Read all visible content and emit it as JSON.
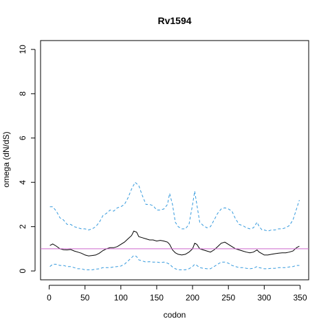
{
  "chart_data": {
    "type": "line",
    "title": "Rv1594",
    "xlabel": "codon",
    "ylabel": "omega (dN/dS)",
    "xlim": [
      -12,
      362
    ],
    "ylim": [
      -0.4,
      10.4
    ],
    "xticks": [
      0,
      50,
      100,
      150,
      200,
      250,
      300,
      350
    ],
    "yticks": [
      0,
      2,
      4,
      6,
      8,
      10
    ],
    "grid": false,
    "legend": "none",
    "reference_line": {
      "y": 1,
      "color": "#cc66cc"
    },
    "series": [
      {
        "role": "estimate",
        "color": "#000000",
        "dash": "solid",
        "points": [
          [
            1,
            1.15
          ],
          [
            5,
            1.22
          ],
          [
            10,
            1.12
          ],
          [
            15,
            1.0
          ],
          [
            20,
            0.96
          ],
          [
            25,
            0.95
          ],
          [
            30,
            0.97
          ],
          [
            35,
            0.9
          ],
          [
            40,
            0.85
          ],
          [
            45,
            0.8
          ],
          [
            50,
            0.72
          ],
          [
            55,
            0.68
          ],
          [
            60,
            0.7
          ],
          [
            65,
            0.72
          ],
          [
            70,
            0.8
          ],
          [
            75,
            0.92
          ],
          [
            80,
            1.0
          ],
          [
            85,
            1.05
          ],
          [
            90,
            1.05
          ],
          [
            95,
            1.1
          ],
          [
            100,
            1.2
          ],
          [
            105,
            1.3
          ],
          [
            110,
            1.45
          ],
          [
            115,
            1.6
          ],
          [
            118,
            1.8
          ],
          [
            122,
            1.75
          ],
          [
            125,
            1.55
          ],
          [
            130,
            1.5
          ],
          [
            135,
            1.45
          ],
          [
            140,
            1.4
          ],
          [
            145,
            1.4
          ],
          [
            150,
            1.35
          ],
          [
            155,
            1.38
          ],
          [
            160,
            1.35
          ],
          [
            165,
            1.3
          ],
          [
            168,
            1.2
          ],
          [
            172,
            0.95
          ],
          [
            176,
            0.82
          ],
          [
            180,
            0.75
          ],
          [
            185,
            0.72
          ],
          [
            190,
            0.75
          ],
          [
            195,
            0.85
          ],
          [
            200,
            1.0
          ],
          [
            203,
            1.25
          ],
          [
            206,
            1.2
          ],
          [
            210,
            1.0
          ],
          [
            215,
            0.95
          ],
          [
            220,
            0.9
          ],
          [
            225,
            0.85
          ],
          [
            230,
            0.95
          ],
          [
            235,
            1.1
          ],
          [
            240,
            1.25
          ],
          [
            245,
            1.3
          ],
          [
            250,
            1.2
          ],
          [
            255,
            1.1
          ],
          [
            260,
            1.0
          ],
          [
            265,
            0.95
          ],
          [
            270,
            0.9
          ],
          [
            275,
            0.85
          ],
          [
            280,
            0.82
          ],
          [
            285,
            0.85
          ],
          [
            290,
            0.95
          ],
          [
            293,
            0.85
          ],
          [
            297,
            0.78
          ],
          [
            300,
            0.72
          ],
          [
            305,
            0.72
          ],
          [
            310,
            0.75
          ],
          [
            315,
            0.78
          ],
          [
            320,
            0.8
          ],
          [
            325,
            0.82
          ],
          [
            330,
            0.82
          ],
          [
            335,
            0.85
          ],
          [
            340,
            0.9
          ],
          [
            345,
            1.05
          ],
          [
            349,
            1.12
          ]
        ]
      },
      {
        "role": "upper-bound",
        "color": "#3399dd",
        "dash": "dashed",
        "points": [
          [
            1,
            2.9
          ],
          [
            5,
            2.9
          ],
          [
            10,
            2.7
          ],
          [
            15,
            2.4
          ],
          [
            20,
            2.3
          ],
          [
            25,
            2.1
          ],
          [
            30,
            2.1
          ],
          [
            35,
            2.0
          ],
          [
            40,
            1.95
          ],
          [
            45,
            1.9
          ],
          [
            50,
            1.9
          ],
          [
            55,
            1.85
          ],
          [
            60,
            1.9
          ],
          [
            65,
            2.0
          ],
          [
            70,
            2.2
          ],
          [
            75,
            2.5
          ],
          [
            80,
            2.6
          ],
          [
            85,
            2.75
          ],
          [
            90,
            2.7
          ],
          [
            95,
            2.85
          ],
          [
            100,
            2.9
          ],
          [
            105,
            3.0
          ],
          [
            110,
            3.3
          ],
          [
            115,
            3.7
          ],
          [
            120,
            4.0
          ],
          [
            125,
            3.85
          ],
          [
            130,
            3.4
          ],
          [
            135,
            3.0
          ],
          [
            140,
            3.0
          ],
          [
            145,
            2.95
          ],
          [
            150,
            2.75
          ],
          [
            155,
            2.75
          ],
          [
            160,
            2.8
          ],
          [
            165,
            3.0
          ],
          [
            168,
            3.5
          ],
          [
            172,
            3.0
          ],
          [
            176,
            2.2
          ],
          [
            180,
            2.0
          ],
          [
            185,
            1.9
          ],
          [
            190,
            1.9
          ],
          [
            195,
            2.1
          ],
          [
            200,
            3.0
          ],
          [
            203,
            3.6
          ],
          [
            206,
            3.0
          ],
          [
            210,
            2.2
          ],
          [
            215,
            2.05
          ],
          [
            220,
            1.95
          ],
          [
            225,
            2.0
          ],
          [
            230,
            2.3
          ],
          [
            235,
            2.6
          ],
          [
            240,
            2.8
          ],
          [
            245,
            2.85
          ],
          [
            250,
            2.8
          ],
          [
            255,
            2.7
          ],
          [
            260,
            2.35
          ],
          [
            265,
            2.1
          ],
          [
            270,
            2.05
          ],
          [
            275,
            1.95
          ],
          [
            280,
            1.9
          ],
          [
            285,
            1.95
          ],
          [
            290,
            2.2
          ],
          [
            293,
            2.0
          ],
          [
            297,
            1.85
          ],
          [
            300,
            1.85
          ],
          [
            305,
            1.8
          ],
          [
            310,
            1.85
          ],
          [
            315,
            1.85
          ],
          [
            320,
            1.9
          ],
          [
            325,
            1.9
          ],
          [
            330,
            1.95
          ],
          [
            335,
            2.05
          ],
          [
            340,
            2.3
          ],
          [
            345,
            2.8
          ],
          [
            349,
            3.2
          ]
        ]
      },
      {
        "role": "lower-bound",
        "color": "#3399dd",
        "dash": "dashed",
        "points": [
          [
            1,
            0.2
          ],
          [
            5,
            0.3
          ],
          [
            10,
            0.3
          ],
          [
            15,
            0.25
          ],
          [
            20,
            0.25
          ],
          [
            25,
            0.2
          ],
          [
            30,
            0.2
          ],
          [
            35,
            0.15
          ],
          [
            40,
            0.1
          ],
          [
            45,
            0.1
          ],
          [
            50,
            0.05
          ],
          [
            55,
            0.05
          ],
          [
            60,
            0.05
          ],
          [
            65,
            0.08
          ],
          [
            70,
            0.1
          ],
          [
            75,
            0.15
          ],
          [
            80,
            0.15
          ],
          [
            85,
            0.15
          ],
          [
            90,
            0.18
          ],
          [
            95,
            0.2
          ],
          [
            100,
            0.22
          ],
          [
            105,
            0.3
          ],
          [
            110,
            0.45
          ],
          [
            115,
            0.6
          ],
          [
            118,
            0.7
          ],
          [
            122,
            0.65
          ],
          [
            125,
            0.5
          ],
          [
            130,
            0.45
          ],
          [
            135,
            0.4
          ],
          [
            140,
            0.42
          ],
          [
            145,
            0.4
          ],
          [
            150,
            0.4
          ],
          [
            155,
            0.38
          ],
          [
            160,
            0.4
          ],
          [
            165,
            0.35
          ],
          [
            168,
            0.3
          ],
          [
            172,
            0.18
          ],
          [
            176,
            0.1
          ],
          [
            180,
            0.05
          ],
          [
            185,
            0.05
          ],
          [
            190,
            0.05
          ],
          [
            195,
            0.1
          ],
          [
            200,
            0.2
          ],
          [
            203,
            0.3
          ],
          [
            206,
            0.25
          ],
          [
            210,
            0.15
          ],
          [
            215,
            0.12
          ],
          [
            220,
            0.1
          ],
          [
            225,
            0.1
          ],
          [
            230,
            0.2
          ],
          [
            235,
            0.3
          ],
          [
            240,
            0.4
          ],
          [
            245,
            0.4
          ],
          [
            250,
            0.35
          ],
          [
            255,
            0.25
          ],
          [
            260,
            0.2
          ],
          [
            265,
            0.15
          ],
          [
            270,
            0.15
          ],
          [
            275,
            0.12
          ],
          [
            280,
            0.1
          ],
          [
            285,
            0.12
          ],
          [
            290,
            0.2
          ],
          [
            293,
            0.15
          ],
          [
            297,
            0.12
          ],
          [
            300,
            0.1
          ],
          [
            305,
            0.1
          ],
          [
            310,
            0.12
          ],
          [
            315,
            0.12
          ],
          [
            320,
            0.15
          ],
          [
            325,
            0.15
          ],
          [
            330,
            0.15
          ],
          [
            335,
            0.18
          ],
          [
            340,
            0.2
          ],
          [
            345,
            0.25
          ],
          [
            349,
            0.25
          ]
        ]
      }
    ]
  }
}
